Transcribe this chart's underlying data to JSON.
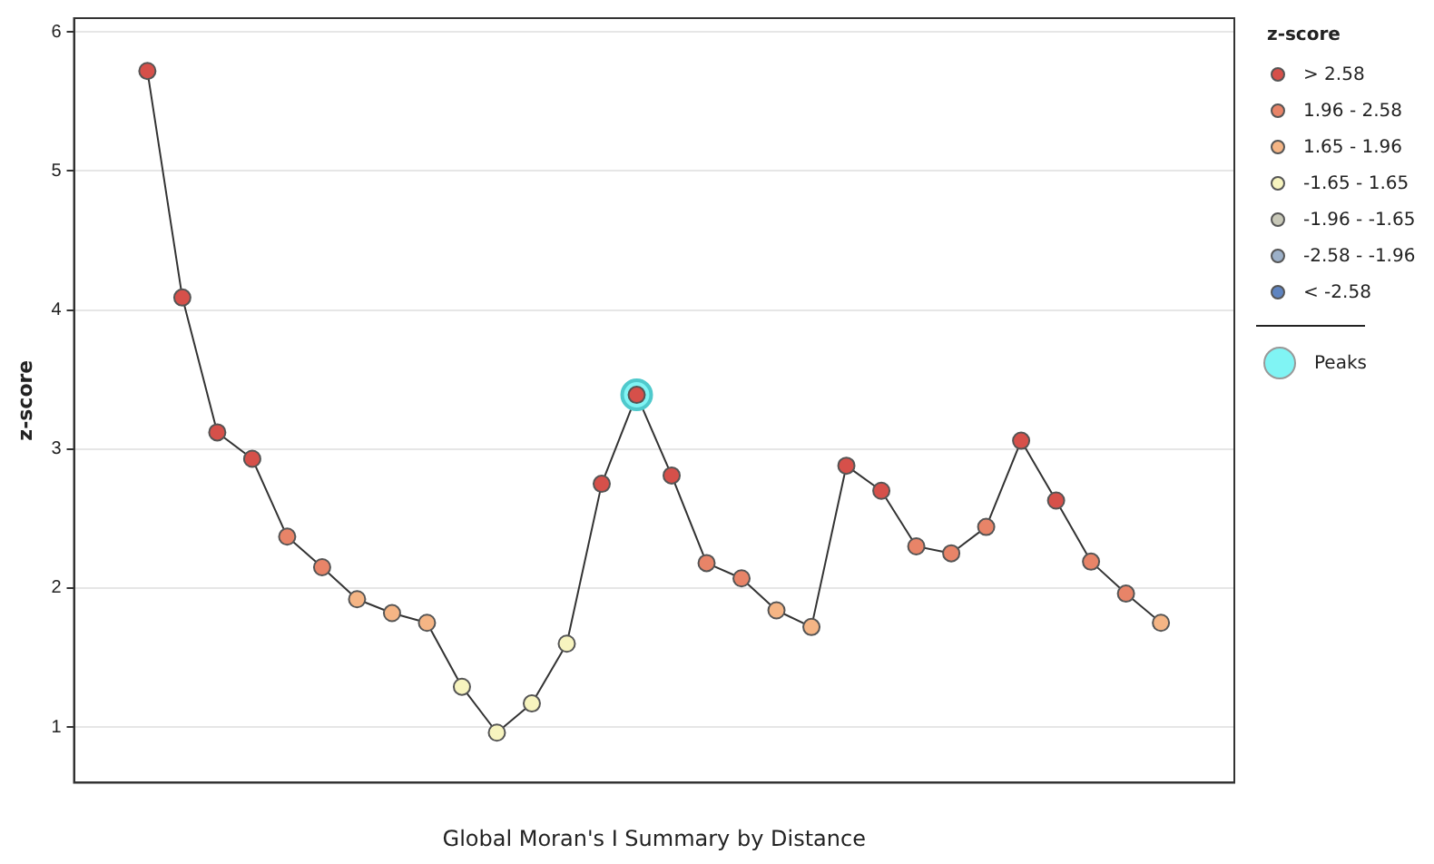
{
  "chart_data": {
    "type": "line",
    "xlabel": "Global Moran's I Summary by Distance",
    "ylabel": "z-score",
    "legend_title": "z-score",
    "categories": [
      null,
      null,
      null,
      null,
      null,
      null,
      null,
      null,
      null,
      null,
      null,
      null,
      null,
      null,
      null,
      null,
      null,
      null,
      null,
      null,
      null,
      null,
      null,
      null,
      null,
      null,
      null,
      null,
      null,
      null
    ],
    "ylim": [
      0.6,
      6.1
    ],
    "yticks": [
      1,
      2,
      3,
      4,
      5,
      6
    ],
    "grid": "y",
    "legend": "right",
    "series": [
      {
        "type": "line",
        "color": "#333333",
        "values": [
          5.72,
          4.09,
          3.12,
          2.93,
          2.37,
          2.15,
          1.92,
          1.82,
          1.75,
          1.29,
          0.96,
          1.17,
          1.6,
          2.75,
          3.39,
          2.81,
          2.18,
          2.07,
          1.84,
          1.72,
          2.88,
          2.7,
          2.3,
          2.25,
          2.44,
          3.06,
          2.63,
          2.19,
          1.96,
          1.75
        ]
      },
      {
        "type": "scatter",
        "name": "> 2.58",
        "marker": "circle",
        "color": "#d6504a",
        "values": [
          5.72,
          4.09,
          3.12,
          2.93,
          null,
          null,
          null,
          null,
          null,
          null,
          null,
          null,
          null,
          2.75,
          3.39,
          2.81,
          null,
          null,
          null,
          null,
          2.88,
          2.7,
          null,
          null,
          null,
          3.06,
          2.63,
          null,
          null,
          null
        ]
      },
      {
        "type": "scatter",
        "name": "1.96 - 2.58",
        "marker": "circle",
        "color": "#e88468",
        "values": [
          null,
          null,
          null,
          null,
          2.37,
          2.15,
          null,
          null,
          null,
          null,
          null,
          null,
          null,
          null,
          null,
          null,
          2.18,
          2.07,
          null,
          null,
          null,
          null,
          2.3,
          2.25,
          2.44,
          null,
          null,
          2.19,
          1.96,
          null
        ]
      },
      {
        "type": "scatter",
        "name": "1.65 - 1.96",
        "marker": "circle",
        "color": "#f5b585",
        "values": [
          null,
          null,
          null,
          null,
          null,
          null,
          1.92,
          1.82,
          1.75,
          null,
          null,
          null,
          null,
          null,
          null,
          null,
          null,
          null,
          1.84,
          1.72,
          null,
          null,
          null,
          null,
          null,
          null,
          null,
          null,
          null,
          1.75
        ]
      },
      {
        "type": "scatter",
        "name": "-1.65 - 1.65",
        "marker": "circle",
        "color": "#f7f4bf",
        "values": [
          null,
          null,
          null,
          null,
          null,
          null,
          null,
          null,
          null,
          1.29,
          0.96,
          1.17,
          1.6,
          null,
          null,
          null,
          null,
          null,
          null,
          null,
          null,
          null,
          null,
          null,
          null,
          null,
          null,
          null,
          null,
          null
        ]
      },
      {
        "type": "scatter",
        "name": "-1.96 - -1.65",
        "marker": "circle",
        "color": "#c8c8b8",
        "values": [
          null,
          null,
          null,
          null,
          null,
          null,
          null,
          null,
          null,
          null,
          null,
          null,
          null,
          null,
          null,
          null,
          null,
          null,
          null,
          null,
          null,
          null,
          null,
          null,
          null,
          null,
          null,
          null,
          null,
          null
        ]
      },
      {
        "type": "scatter",
        "name": "-2.58 - -1.96",
        "marker": "circle",
        "color": "#9cb0c8",
        "values": [
          null,
          null,
          null,
          null,
          null,
          null,
          null,
          null,
          null,
          null,
          null,
          null,
          null,
          null,
          null,
          null,
          null,
          null,
          null,
          null,
          null,
          null,
          null,
          null,
          null,
          null,
          null,
          null,
          null,
          null
        ]
      },
      {
        "type": "scatter",
        "name": "< -2.58",
        "marker": "circle",
        "color": "#5f84c0",
        "values": [
          null,
          null,
          null,
          null,
          null,
          null,
          null,
          null,
          null,
          null,
          null,
          null,
          null,
          null,
          null,
          null,
          null,
          null,
          null,
          null,
          null,
          null,
          null,
          null,
          null,
          null,
          null,
          null,
          null,
          null
        ]
      },
      {
        "type": "scatter",
        "name": "Peaks",
        "marker": "circle",
        "color": "#80f4f4",
        "values": [
          null,
          null,
          null,
          null,
          null,
          null,
          null,
          null,
          null,
          null,
          null,
          null,
          null,
          null,
          3.39,
          null,
          null,
          null,
          null,
          null,
          null,
          null,
          null,
          null,
          null,
          null,
          null,
          null,
          null,
          null
        ]
      }
    ]
  }
}
